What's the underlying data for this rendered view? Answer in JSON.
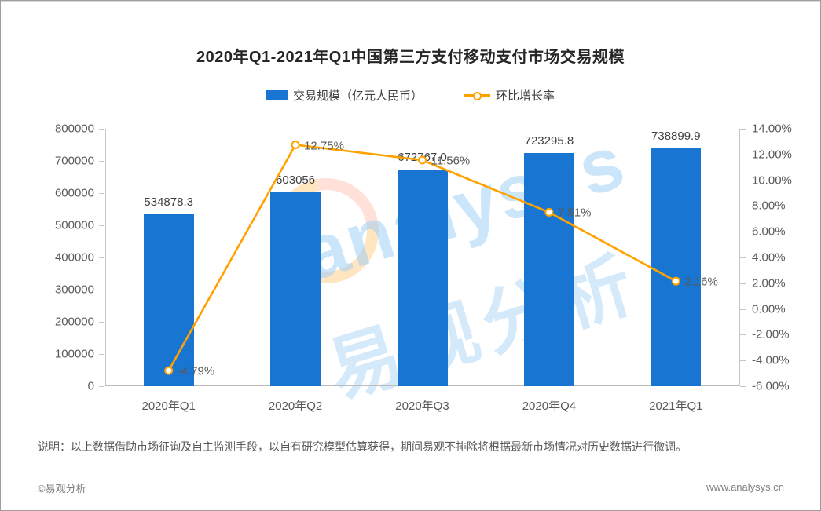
{
  "title": "2020年Q1-2021年Q1中国第三方支付移动支付市场交易规模",
  "legend": [
    {
      "label": "交易规模（亿元人民币）",
      "type": "bar",
      "color": "#1876d2"
    },
    {
      "label": "环比增长率",
      "type": "line",
      "color": "#ffa200"
    }
  ],
  "chart_data": {
    "type": "bar+line",
    "title": "2020年Q1-2021年Q1中国第三方支付移动支付市场交易规模",
    "categories": [
      "2020年Q1",
      "2020年Q2",
      "2020年Q3",
      "2020年Q4",
      "2021年Q1"
    ],
    "series": [
      {
        "name": "交易规模（亿元人民币）",
        "type": "bar",
        "axis": "left",
        "color": "#1876d2",
        "values": [
          534878.3,
          603056,
          672767.0,
          723295.8,
          738899.9
        ],
        "labels": [
          "534878.3",
          "603056",
          "672767.0",
          "723295.8",
          "738899.9"
        ]
      },
      {
        "name": "环比增长率",
        "type": "line",
        "axis": "right",
        "color": "#ffa200",
        "values": [
          -4.79,
          12.75,
          11.56,
          7.51,
          2.16
        ],
        "labels": [
          "-4.79%",
          "12.75%",
          "11.56%",
          "7.51%",
          "2.16%"
        ]
      }
    ],
    "left_axis": {
      "min": 0,
      "max": 800000,
      "step": 100000,
      "ticks": [
        "800000",
        "700000",
        "600000",
        "500000",
        "400000",
        "300000",
        "200000",
        "100000",
        "0"
      ]
    },
    "right_axis": {
      "min": -6,
      "max": 14,
      "step": 2,
      "ticks": [
        "14.00%",
        "12.00%",
        "10.00%",
        "8.00%",
        "6.00%",
        "4.00%",
        "2.00%",
        "0.00%",
        "-2.00%",
        "-4.00%",
        "-6.00%"
      ]
    },
    "grid": false,
    "legend_position": "top"
  },
  "watermark": {
    "latin": "analysys",
    "cjk": "易观分析"
  },
  "note": "说明：以上数据借助市场征询及自主监测手段，以自有研究模型估算获得，期间易观不排除将根据最新市场情况对历史数据进行微调。",
  "footer": {
    "copyright": "©易观分析",
    "website": "www.analysys.cn"
  }
}
